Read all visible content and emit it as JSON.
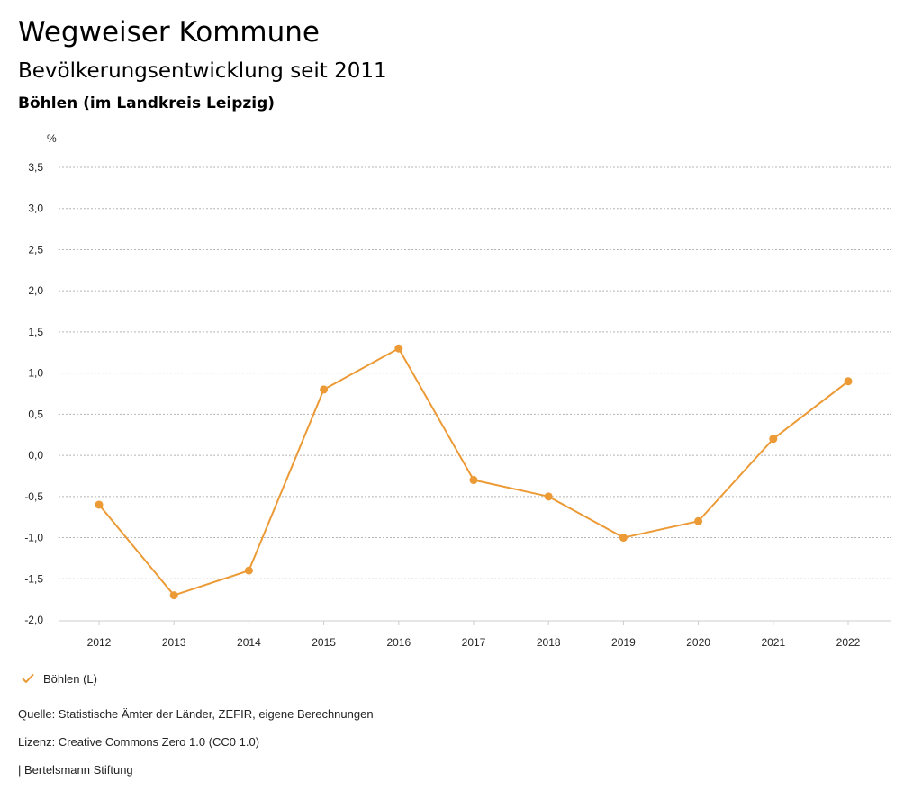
{
  "header": {
    "title": "Wegweiser Kommune",
    "subtitle": "Bevölkerungsentwicklung seit 2011",
    "region": "Böhlen (im Landkreis Leipzig)"
  },
  "chart_data": {
    "type": "line",
    "title": "Bevölkerungsentwicklung seit 2011",
    "ylabel": "%",
    "xlabel": "",
    "ylim": [
      -2.0,
      3.5
    ],
    "ytick_values": [
      -2.0,
      -1.5,
      -1.0,
      -0.5,
      0.0,
      0.5,
      1.0,
      1.5,
      2.0,
      2.5,
      3.0,
      3.5
    ],
    "ytick_labels": [
      "-2,0",
      "-1,5",
      "-1,0",
      "-0,5",
      "0,0",
      "0,5",
      "1,0",
      "1,5",
      "2,0",
      "2,5",
      "3,0",
      "3,5"
    ],
    "categories": [
      "2012",
      "2013",
      "2014",
      "2015",
      "2016",
      "2017",
      "2018",
      "2019",
      "2020",
      "2021",
      "2022"
    ],
    "grid": true,
    "legend_position": "bottom-left",
    "series": [
      {
        "name": "Böhlen (L)",
        "color": "#ec9a35",
        "values": [
          -0.6,
          -1.7,
          -1.4,
          0.8,
          1.3,
          -0.3,
          -0.5,
          -1.0,
          -0.8,
          0.2,
          0.9
        ]
      }
    ]
  },
  "legend": {
    "label": "Böhlen (L)",
    "icon": "check-icon"
  },
  "footer": {
    "source": "Quelle: Statistische Ämter der Länder, ZEFIR, eigene Berechnungen",
    "license": "Lizenz: Creative Commons Zero 1.0 (CC0 1.0)",
    "publisher": "| Bertelsmann Stiftung"
  }
}
